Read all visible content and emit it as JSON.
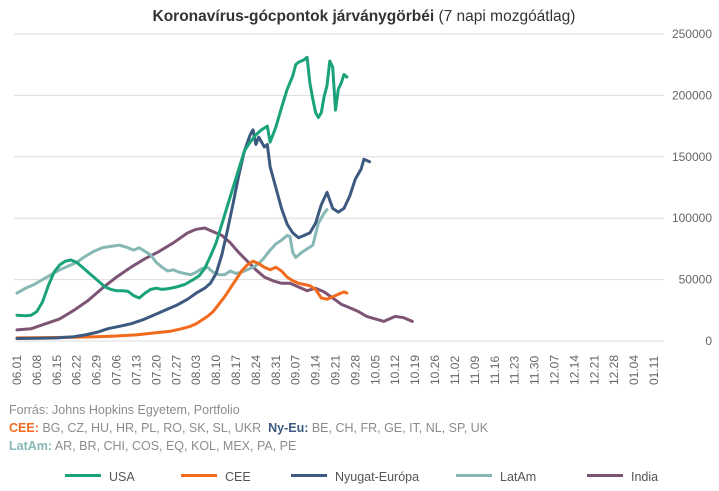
{
  "chart_data": {
    "type": "line",
    "title_bold": "Koronavírus-gócpontok járványgörbéi",
    "title_rest": " (7 napi mozgóátlag)",
    "x_ticks": [
      "06.01",
      "06.08",
      "06.15",
      "06.22",
      "06.29",
      "07.06",
      "07.13",
      "07.20",
      "07.27",
      "08.03",
      "08.10",
      "08.17",
      "08.24",
      "08.31",
      "09.07",
      "09.14",
      "09.21",
      "09.28",
      "10.05",
      "10.12",
      "10.19",
      "10.26",
      "11.02",
      "11.09",
      "11.16",
      "11.23",
      "11.30",
      "12.07",
      "12.14",
      "12.21",
      "12.28",
      "01.04",
      "01.11"
    ],
    "y_ticks": [
      "0",
      "50000",
      "100000",
      "150000",
      "200000",
      "250000"
    ],
    "ylim": [
      0,
      250000
    ],
    "colors": {
      "USA": "#1aa37a",
      "CEE": "#f26a1b",
      "Nyugat-Európa": "#3c5a80",
      "LatAm": "#86b8b6",
      "India": "#7d5473",
      "grid": "#dddddd"
    },
    "series": [
      {
        "name": "USA",
        "points": [
          [
            0,
            21000
          ],
          [
            3,
            20500
          ],
          [
            5,
            21000
          ],
          [
            7,
            24000
          ],
          [
            9,
            32000
          ],
          [
            11,
            45000
          ],
          [
            13,
            56000
          ],
          [
            15,
            62000
          ],
          [
            17,
            65000
          ],
          [
            19,
            66000
          ],
          [
            21,
            64000
          ],
          [
            23,
            60000
          ],
          [
            25,
            56000
          ],
          [
            27,
            52000
          ],
          [
            29,
            48000
          ],
          [
            31,
            44000
          ],
          [
            33,
            42000
          ],
          [
            35,
            41000
          ],
          [
            37,
            41000
          ],
          [
            39,
            40500
          ],
          [
            41,
            37000
          ],
          [
            43,
            35000
          ],
          [
            45,
            39000
          ],
          [
            47,
            42000
          ],
          [
            49,
            43000
          ],
          [
            51,
            42000
          ],
          [
            53,
            42500
          ],
          [
            56,
            44000
          ],
          [
            59,
            46000
          ],
          [
            62,
            50000
          ],
          [
            64,
            53000
          ],
          [
            66,
            59000
          ],
          [
            68,
            69000
          ],
          [
            70,
            80000
          ],
          [
            72,
            95000
          ],
          [
            74,
            110000
          ],
          [
            76,
            125000
          ],
          [
            78,
            140000
          ],
          [
            80,
            155000
          ],
          [
            82,
            162000
          ],
          [
            84,
            168000
          ],
          [
            86,
            172000
          ],
          [
            88,
            175000
          ],
          [
            89,
            162000
          ],
          [
            91,
            174000
          ],
          [
            93,
            190000
          ],
          [
            95,
            205000
          ],
          [
            97,
            216000
          ],
          [
            98,
            225000
          ],
          [
            99,
            227000
          ],
          [
            100,
            228000
          ],
          [
            101,
            229000
          ],
          [
            102,
            231000
          ],
          [
            103,
            210000
          ],
          [
            104,
            197000
          ],
          [
            105,
            186000
          ],
          [
            106,
            182000
          ],
          [
            107,
            186000
          ],
          [
            108,
            199000
          ],
          [
            109,
            208000
          ],
          [
            110,
            228000
          ],
          [
            111,
            223000
          ],
          [
            112,
            188000
          ],
          [
            113,
            205000
          ],
          [
            114,
            210000
          ],
          [
            115,
            217000
          ],
          [
            116,
            215000
          ]
        ]
      },
      {
        "name": "CEE",
        "points": [
          [
            0,
            2500
          ],
          [
            10,
            2800
          ],
          [
            20,
            3000
          ],
          [
            28,
            3500
          ],
          [
            34,
            4000
          ],
          [
            38,
            4500
          ],
          [
            42,
            5000
          ],
          [
            46,
            6000
          ],
          [
            50,
            7000
          ],
          [
            54,
            8000
          ],
          [
            58,
            10000
          ],
          [
            61,
            12000
          ],
          [
            63,
            14000
          ],
          [
            65,
            17000
          ],
          [
            67,
            20000
          ],
          [
            69,
            24000
          ],
          [
            71,
            30000
          ],
          [
            73,
            36000
          ],
          [
            75,
            43000
          ],
          [
            77,
            50000
          ],
          [
            79,
            57000
          ],
          [
            81,
            62000
          ],
          [
            83,
            65000
          ],
          [
            85,
            63000
          ],
          [
            87,
            60000
          ],
          [
            89,
            58000
          ],
          [
            91,
            60000
          ],
          [
            93,
            57000
          ],
          [
            95,
            52000
          ],
          [
            97,
            49000
          ],
          [
            99,
            47000
          ],
          [
            101,
            46000
          ],
          [
            103,
            45000
          ],
          [
            105,
            42000
          ],
          [
            107,
            35000
          ],
          [
            109,
            34000
          ],
          [
            111,
            36000
          ],
          [
            113,
            38000
          ],
          [
            115,
            40000
          ],
          [
            116,
            39000
          ]
        ]
      },
      {
        "name": "Nyugat-Európa",
        "points": [
          [
            0,
            2000
          ],
          [
            8,
            2200
          ],
          [
            14,
            2500
          ],
          [
            20,
            3500
          ],
          [
            24,
            5000
          ],
          [
            28,
            7000
          ],
          [
            32,
            10000
          ],
          [
            36,
            12000
          ],
          [
            40,
            14000
          ],
          [
            44,
            17000
          ],
          [
            48,
            21000
          ],
          [
            52,
            25000
          ],
          [
            56,
            29000
          ],
          [
            60,
            34000
          ],
          [
            63,
            39000
          ],
          [
            66,
            43000
          ],
          [
            68,
            47000
          ],
          [
            70,
            55000
          ],
          [
            72,
            70000
          ],
          [
            74,
            90000
          ],
          [
            76,
            112000
          ],
          [
            78,
            135000
          ],
          [
            80,
            155000
          ],
          [
            82,
            168000
          ],
          [
            83,
            172000
          ],
          [
            84,
            160000
          ],
          [
            85,
            166000
          ],
          [
            86,
            162000
          ],
          [
            87,
            158000
          ],
          [
            88,
            160000
          ],
          [
            89,
            142000
          ],
          [
            91,
            125000
          ],
          [
            93,
            108000
          ],
          [
            95,
            95000
          ],
          [
            97,
            88000
          ],
          [
            99,
            84000
          ],
          [
            101,
            86000
          ],
          [
            103,
            88000
          ],
          [
            105,
            96000
          ],
          [
            107,
            111000
          ],
          [
            109,
            121000
          ],
          [
            111,
            108000
          ],
          [
            113,
            105000
          ],
          [
            115,
            108000
          ],
          [
            117,
            118000
          ],
          [
            119,
            132000
          ],
          [
            121,
            140000
          ],
          [
            122,
            148000
          ],
          [
            124,
            146000
          ]
        ]
      },
      {
        "name": "LatAm",
        "points": [
          [
            0,
            39000
          ],
          [
            3,
            43000
          ],
          [
            6,
            46000
          ],
          [
            9,
            50000
          ],
          [
            12,
            54000
          ],
          [
            15,
            58000
          ],
          [
            18,
            61000
          ],
          [
            21,
            64000
          ],
          [
            24,
            69000
          ],
          [
            27,
            73000
          ],
          [
            30,
            76000
          ],
          [
            33,
            77000
          ],
          [
            36,
            78000
          ],
          [
            39,
            76000
          ],
          [
            41,
            74000
          ],
          [
            43,
            76000
          ],
          [
            45,
            73000
          ],
          [
            47,
            70000
          ],
          [
            49,
            64000
          ],
          [
            51,
            60000
          ],
          [
            53,
            57000
          ],
          [
            55,
            58000
          ],
          [
            57,
            56000
          ],
          [
            59,
            55000
          ],
          [
            61,
            54000
          ],
          [
            63,
            56000
          ],
          [
            65,
            59000
          ],
          [
            67,
            60000
          ],
          [
            69,
            56000
          ],
          [
            71,
            54000
          ],
          [
            73,
            54000
          ],
          [
            75,
            57000
          ],
          [
            77,
            55000
          ],
          [
            79,
            56000
          ],
          [
            81,
            58000
          ],
          [
            83,
            60000
          ],
          [
            85,
            63000
          ],
          [
            87,
            68000
          ],
          [
            89,
            74000
          ],
          [
            91,
            79000
          ],
          [
            93,
            82000
          ],
          [
            95,
            86000
          ],
          [
            96,
            85000
          ],
          [
            97,
            72000
          ],
          [
            98,
            68000
          ],
          [
            100,
            72000
          ],
          [
            102,
            75000
          ],
          [
            104,
            78000
          ],
          [
            106,
            96000
          ],
          [
            108,
            104000
          ],
          [
            109,
            107000
          ]
        ]
      },
      {
        "name": "India",
        "points": [
          [
            0,
            9000
          ],
          [
            5,
            10000
          ],
          [
            10,
            14000
          ],
          [
            15,
            18000
          ],
          [
            20,
            25000
          ],
          [
            25,
            33000
          ],
          [
            30,
            43000
          ],
          [
            35,
            52000
          ],
          [
            40,
            60000
          ],
          [
            45,
            67000
          ],
          [
            50,
            73000
          ],
          [
            55,
            80000
          ],
          [
            60,
            88000
          ],
          [
            63,
            91000
          ],
          [
            66,
            92000
          ],
          [
            69,
            89000
          ],
          [
            72,
            86000
          ],
          [
            75,
            80000
          ],
          [
            78,
            72000
          ],
          [
            81,
            65000
          ],
          [
            84,
            58000
          ],
          [
            87,
            52000
          ],
          [
            90,
            49000
          ],
          [
            93,
            47000
          ],
          [
            96,
            47000
          ],
          [
            99,
            44000
          ],
          [
            102,
            41000
          ],
          [
            105,
            43000
          ],
          [
            108,
            40000
          ],
          [
            111,
            35000
          ],
          [
            114,
            30000
          ],
          [
            117,
            27000
          ],
          [
            120,
            24000
          ],
          [
            123,
            20000
          ],
          [
            126,
            18000
          ],
          [
            129,
            16000
          ],
          [
            131,
            18000
          ],
          [
            133,
            20000
          ],
          [
            136,
            19000
          ],
          [
            139,
            16000
          ]
        ]
      }
    ],
    "legend": [
      "USA",
      "CEE",
      "Nyugat-Európa",
      "LatAm",
      "India"
    ]
  },
  "footer": {
    "source": "Forrás: Johns Hopkins Egyetem, Portfolio",
    "cee_label": "CEE:",
    "cee_countries": " BG, CZ, HU, HR, PL, RO, SK, SL, UKR",
    "nyeu_label": "Ny-Eu:",
    "nyeu_countries": " BE, CH, FR, GE, IT, NL, SP, UK",
    "latam_label": "LatAm:",
    "latam_countries": " AR, BR, CHI, COS, EQ, KOL, MEX, PA, PE"
  }
}
